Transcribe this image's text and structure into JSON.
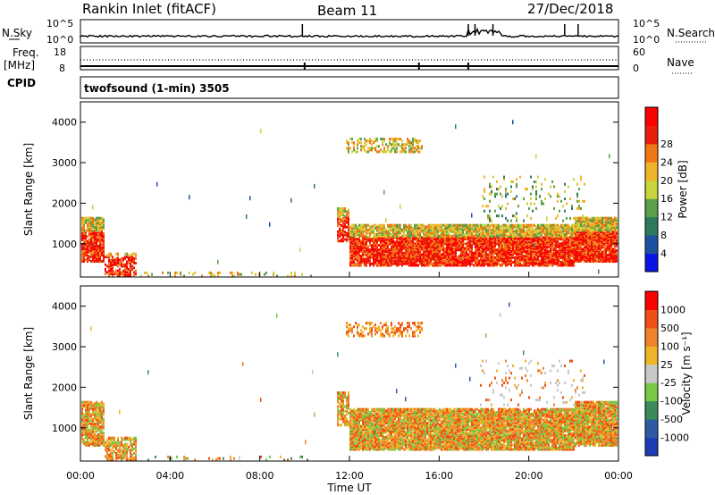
{
  "header": {
    "station": "Rankin Inlet (fitACF)",
    "beam": "Beam 11",
    "date": "27/Dec/2018"
  },
  "strips": {
    "nsky_label": "N.Sky",
    "nsearch_label": "N.Search",
    "nsky_ticks": [
      "10^5",
      "10^0"
    ],
    "nsky_right_ticks": [
      "10^5",
      "10^0"
    ],
    "freq_label": "Freq.",
    "freq_unit": "[MHz]",
    "freq_ticks": [
      "18",
      "8"
    ],
    "nave_label": "Nave",
    "nave_ticks": [
      "60",
      "0"
    ],
    "cpid_label": "CPID",
    "cpid_text": "twofsound (1-min) 3505"
  },
  "chart_data": [
    {
      "type": "heatmap",
      "panel": "power",
      "ylabel": "Slant Range [km]",
      "yticks": [
        1000,
        2000,
        3000,
        4000
      ],
      "ylim": [
        180,
        4500
      ],
      "colorbar_label": "Power [dB]",
      "colorbar_ticks": [
        "4",
        "8",
        "12",
        "16",
        "20",
        "24",
        "28"
      ],
      "colorbar_colors": [
        "#0a14e6",
        "#1e50a0",
        "#2e7a5c",
        "#5aa04a",
        "#c8d43a",
        "#f0b428",
        "#f07814",
        "#e81e0a",
        "#ff0000"
      ]
    },
    {
      "type": "heatmap",
      "panel": "velocity",
      "ylabel": "Slant Range [km]",
      "yticks": [
        1000,
        2000,
        3000,
        4000
      ],
      "ylim": [
        180,
        4500
      ],
      "colorbar_label": "Velocity [m s⁻¹]",
      "colorbar_ticks": [
        "1000",
        "500",
        "100",
        "25",
        "-25",
        "-100",
        "-500",
        "-1000"
      ],
      "colorbar_colors": [
        "#1e3cb4",
        "#2e5aa0",
        "#3a8a5a",
        "#78c846",
        "#c8c8c8",
        "#f0b428",
        "#f08228",
        "#f05014",
        "#ff0000"
      ]
    }
  ],
  "xaxis": {
    "ticks": [
      "00:00",
      "04:00",
      "08:00",
      "12:00",
      "16:00",
      "20:00",
      "00:00"
    ],
    "label": "Time UT"
  }
}
